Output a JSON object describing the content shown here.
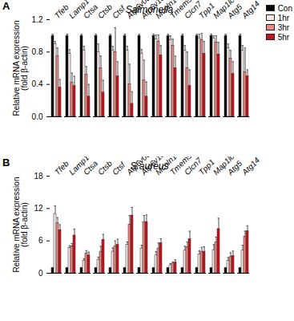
{
  "chart_data": [
    {
      "type": "bar",
      "annotations": [
        "A"
      ],
      "title": "Salmonella",
      "y_label": "Relative mRNA expression\n(fold β-actin)",
      "categories": [
        "Tfeb",
        "Lamp1",
        "Ctsa",
        "Ctsb",
        "Ctsf",
        "Atp6v0d2",
        "Atp6v1a",
        "Mcoln1",
        "Tmem55b",
        "Clcn7",
        "Tpp1",
        "Map1lc3b",
        "Atg5",
        "Atg14"
      ],
      "series": [
        {
          "name": "Con",
          "color": "#000000",
          "values": [
            1,
            1,
            1,
            1,
            1,
            1,
            1,
            1,
            1,
            1,
            1,
            1,
            1,
            1
          ],
          "errors": [
            0.02,
            0.02,
            0.02,
            0.02,
            0.02,
            0.02,
            0.02,
            0.02,
            0.02,
            0.02,
            0.02,
            0.02,
            0.02,
            0.02
          ]
        },
        {
          "name": "1hr",
          "color": "#fbe8e8",
          "values": [
            0.9,
            0.78,
            0.82,
            0.8,
            0.82,
            0.82,
            0.78,
            0.96,
            0.95,
            0.82,
            0.97,
            0.97,
            0.85,
            0.82
          ],
          "errors": [
            0.03,
            0.05,
            0.05,
            0.1,
            0.05,
            0.05,
            0.05,
            0.05,
            0.05,
            0.06,
            0.05,
            0.03,
            0.05,
            0.06
          ]
        },
        {
          "name": "3hr",
          "color": "#e98a84",
          "values": [
            0.75,
            0.42,
            0.52,
            0.6,
            0.8,
            0.4,
            0.45,
            0.93,
            0.88,
            0.6,
            0.95,
            0.92,
            0.72,
            0.55
          ],
          "errors": [
            0.1,
            0.12,
            0.1,
            0.15,
            0.3,
            0.25,
            0.25,
            0.08,
            0.08,
            0.2,
            0.08,
            0.08,
            0.1,
            0.3
          ]
        },
        {
          "name": "5hr",
          "color": "#c8141e",
          "values": [
            0.36,
            0.38,
            0.25,
            0.3,
            0.5,
            0.16,
            0.25,
            0.76,
            0.6,
            0.38,
            0.78,
            0.77,
            0.53,
            0.5
          ],
          "errors": [
            0.1,
            0.12,
            0.15,
            0.15,
            0.18,
            0.15,
            0.18,
            0.12,
            0.15,
            0.2,
            0.15,
            0.15,
            0.15,
            0.08
          ]
        }
      ],
      "ylim": [
        0,
        1.2
      ],
      "yticks": [
        0,
        0.4,
        0.8,
        1.2
      ],
      "legend": "top-right",
      "grid": false
    },
    {
      "type": "bar",
      "annotations": [
        "B"
      ],
      "title": "S.aureus",
      "y_label": "Relative mRNA expression\n(fold β-actin)",
      "categories": [
        "Tfeb",
        "Lamp1",
        "Ctsa",
        "Ctsb",
        "Ctsf",
        "Atp6v0d2",
        "Atp6v1a",
        "Mcoln1",
        "Tmem55b",
        "Clcn7",
        "Tpp1",
        "Map1lc3b",
        "Atg5",
        "Atg14"
      ],
      "series": [
        {
          "name": "Con",
          "color": "#000000",
          "values": [
            1,
            1,
            1,
            1,
            1,
            1,
            1,
            1,
            1,
            1,
            1,
            1,
            1,
            1
          ],
          "errors": [
            0.05,
            0.05,
            0.05,
            0.05,
            0.05,
            0.05,
            0.05,
            0.05,
            0.05,
            0.05,
            0.05,
            0.05,
            0.05,
            0.05
          ]
        },
        {
          "name": "1hr",
          "color": "#fbe8e8",
          "values": [
            11,
            4.7,
            2.3,
            2.5,
            4,
            5.3,
            4.6,
            3.3,
            1.5,
            4.2,
            3.5,
            4.3,
            2.3,
            4.2
          ],
          "errors": [
            1.5,
            0.4,
            0.4,
            0.5,
            0.7,
            0.5,
            0.6,
            0.7,
            0.3,
            0.8,
            0.7,
            1,
            0.6,
            1
          ]
        },
        {
          "name": "3hr",
          "color": "#e98a84",
          "values": [
            9.3,
            5,
            3.7,
            4,
            5,
            9,
            9.5,
            4.6,
            1.8,
            4.8,
            4,
            5.7,
            3,
            6.8
          ],
          "errors": [
            1,
            0.5,
            0.5,
            1,
            1,
            1.7,
            1.2,
            1,
            0.3,
            1,
            0.8,
            1,
            0.8,
            1
          ]
        },
        {
          "name": "5hr",
          "color": "#c8141e",
          "values": [
            8,
            7,
            3.3,
            6.2,
            5.3,
            10.7,
            9.5,
            5.6,
            2,
            6.3,
            4,
            8.2,
            3.2,
            7.8
          ],
          "errors": [
            1,
            1.2,
            0.6,
            1,
            1,
            1.5,
            1.3,
            0.8,
            0.5,
            1.5,
            0.9,
            2,
            0.9,
            1
          ]
        }
      ],
      "ylim": [
        0,
        18
      ],
      "yticks": [
        0,
        6,
        12,
        18
      ],
      "grid": false
    }
  ]
}
